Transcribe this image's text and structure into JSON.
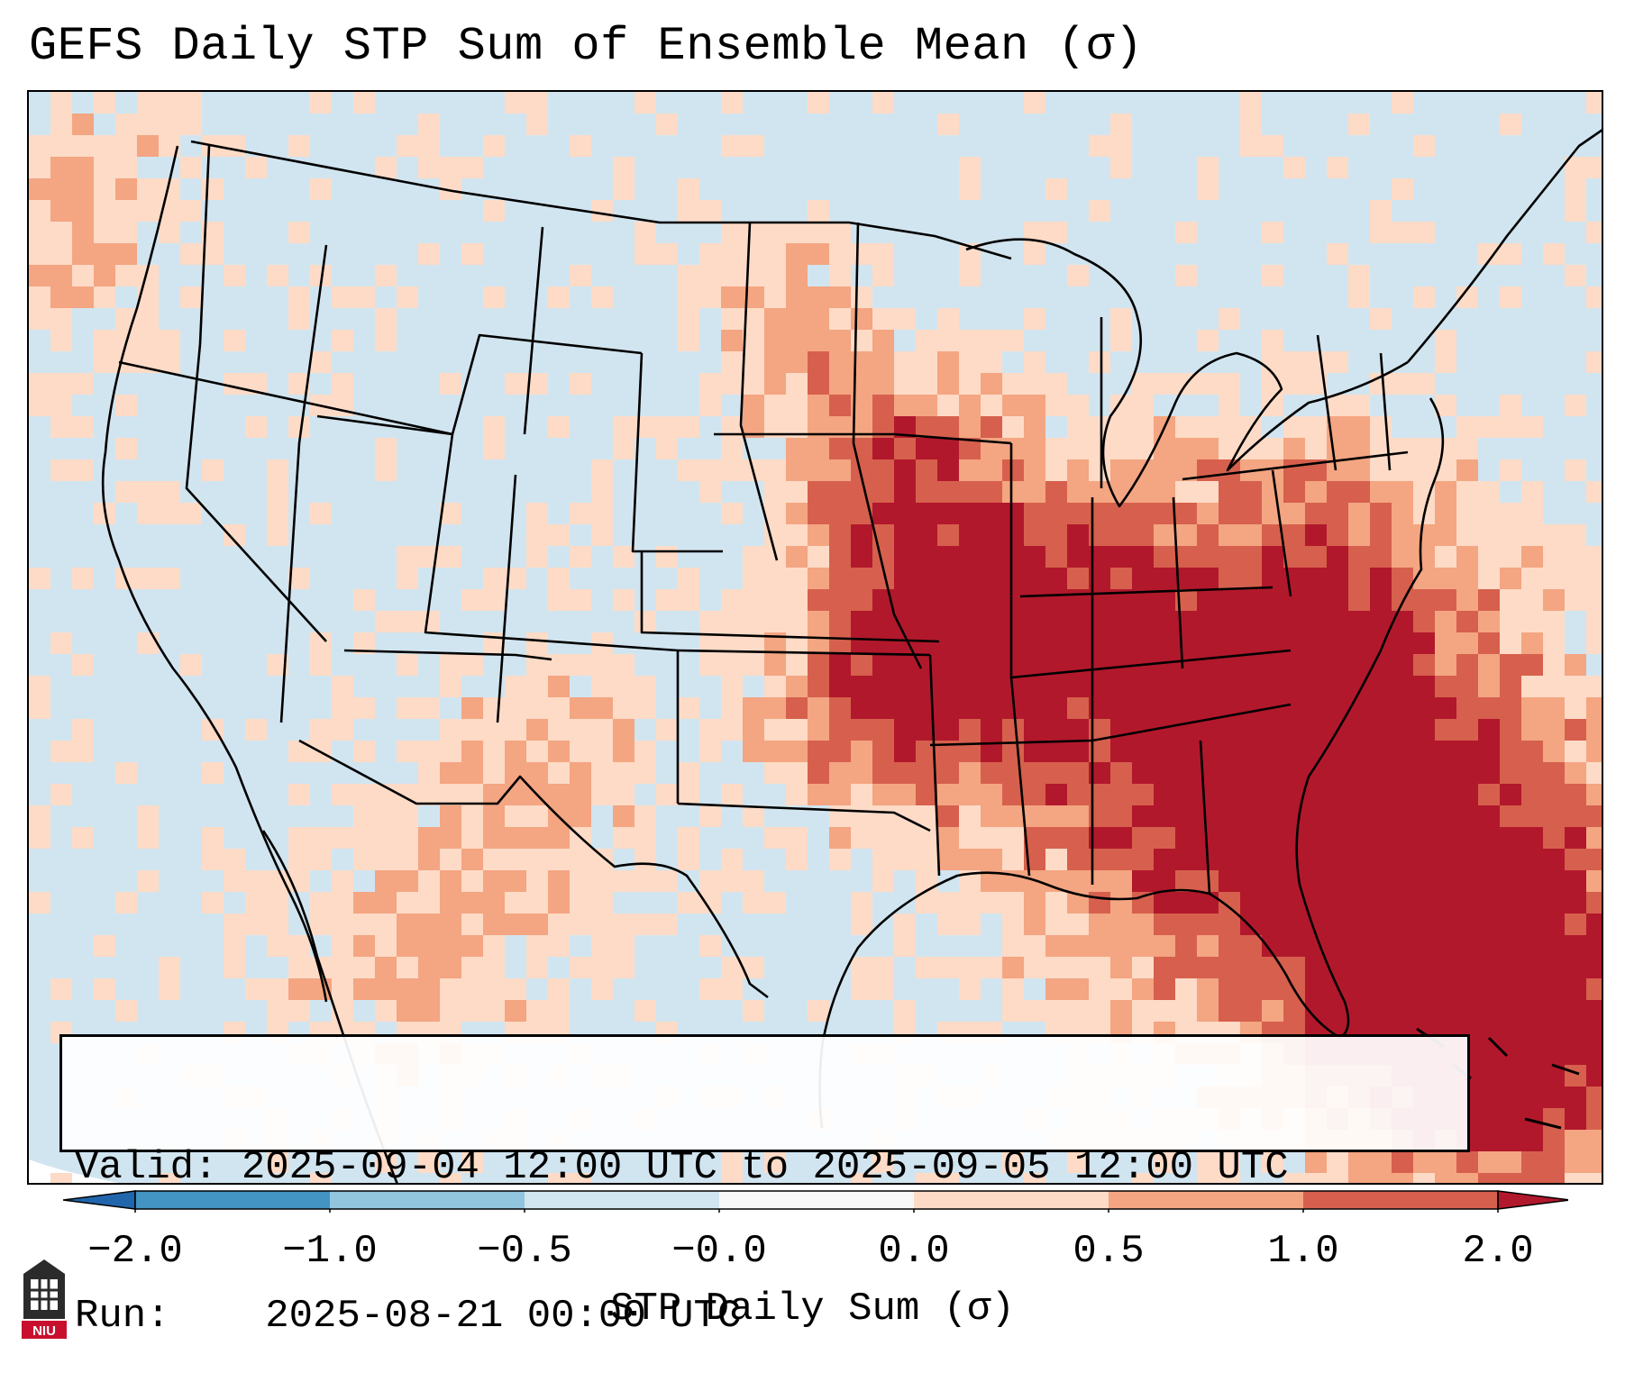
{
  "title": "GEFS Daily STP Sum of Ensemble Mean (σ)",
  "map": {
    "projection": "lambert-conformal-conus",
    "background_value_color": "#d1e5f0",
    "coastline_color": "#000000",
    "hotspots": [
      {
        "region": "Mid-South / Tennessee Valley",
        "value_sigma": 2.0
      },
      {
        "region": "Iowa / Missouri",
        "value_sigma": 2.0
      },
      {
        "region": "Oklahoma",
        "value_sigma": 2.0
      },
      {
        "region": "Western Atlantic east of Florida",
        "value_sigma": 2.0
      }
    ]
  },
  "info_box": {
    "valid_label": "Valid:",
    "valid_value": "2025-09-04 12:00 UTC to 2025-09-05 12:00 UTC",
    "run_label": "Run:",
    "run_value": "2025-08-21 00:00 UTC"
  },
  "colorbar": {
    "label": "STP Daily Sum (σ)",
    "ticks": [
      "−2.0",
      "−1.0",
      "−0.5",
      "−0.0",
      "0.0",
      "0.5",
      "1.0",
      "2.0"
    ],
    "bins": [
      {
        "range": "< -2.0",
        "color": "#2166ac"
      },
      {
        "range": "-2.0 to -1.0",
        "color": "#4393c3"
      },
      {
        "range": "-1.0 to -0.5",
        "color": "#92c5de"
      },
      {
        "range": "-0.5 to -0.0",
        "color": "#d1e5f0"
      },
      {
        "range": "-0.0 to 0.0",
        "color": "#f7f7f7"
      },
      {
        "range": "0.0 to 0.5",
        "color": "#fddbc7"
      },
      {
        "range": "0.5 to 1.0",
        "color": "#f4a582"
      },
      {
        "range": "1.0 to 2.0",
        "color": "#d6604d"
      },
      {
        "range": "> 2.0",
        "color": "#b2182b"
      }
    ]
  },
  "logo_text": "NIU"
}
